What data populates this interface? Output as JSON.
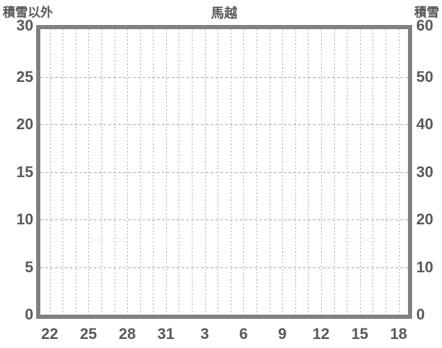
{
  "header": {
    "left_axis_title": "積雪以外",
    "chart_title": "馬越",
    "right_axis_title": "積雪"
  },
  "colors": {
    "text": "#595959",
    "plot_border": "#808080",
    "gridline": "#a9a9a9",
    "background": "#ffffff"
  },
  "chart_data": {
    "type": "line",
    "title": "馬越",
    "x": [
      22,
      23,
      24,
      25,
      26,
      27,
      28,
      29,
      30,
      31,
      1,
      2,
      3,
      4,
      5,
      6,
      7,
      8,
      9,
      10,
      11,
      12,
      13,
      14,
      15,
      16,
      17,
      18
    ],
    "x_tick_labels": [
      "22",
      "25",
      "28",
      "31",
      "3",
      "6",
      "9",
      "12",
      "15",
      "18"
    ],
    "x_label_every_n_days": 3,
    "left_axis": {
      "label": "積雪以外",
      "range": [
        0,
        30
      ],
      "ticks": [
        30,
        25,
        20,
        15,
        10,
        5,
        0
      ]
    },
    "right_axis": {
      "label": "積雪",
      "range": [
        0,
        60
      ],
      "ticks": [
        60,
        50,
        40,
        30,
        20,
        10,
        0
      ]
    },
    "grid": {
      "vertical": "dashed, one line per day",
      "horizontal": "dashed, one line per axis tick",
      "on": true
    },
    "legend": "none",
    "series": [],
    "note": "plot area is empty - no data series rendered"
  }
}
